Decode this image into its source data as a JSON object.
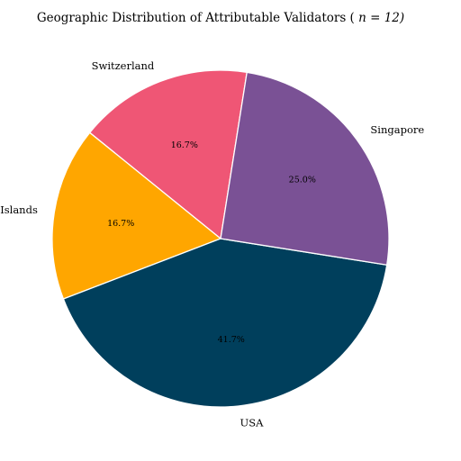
{
  "chart_data": {
    "type": "pie",
    "title": "Geographic Distribution of Attributable Validators (n = 12)",
    "categories": [
      "Switzerland",
      "Cayman Islands",
      "USA",
      "Singapore"
    ],
    "values": [
      2,
      2,
      5,
      3
    ],
    "percent_labels": [
      "16.7%",
      "16.7%",
      "41.7%",
      "25.0%"
    ],
    "colors": [
      "#ef5675",
      "#ffa600",
      "#003f5c",
      "#7a5195"
    ],
    "start_angle_deg": 81,
    "direction": "counterclockwise"
  }
}
